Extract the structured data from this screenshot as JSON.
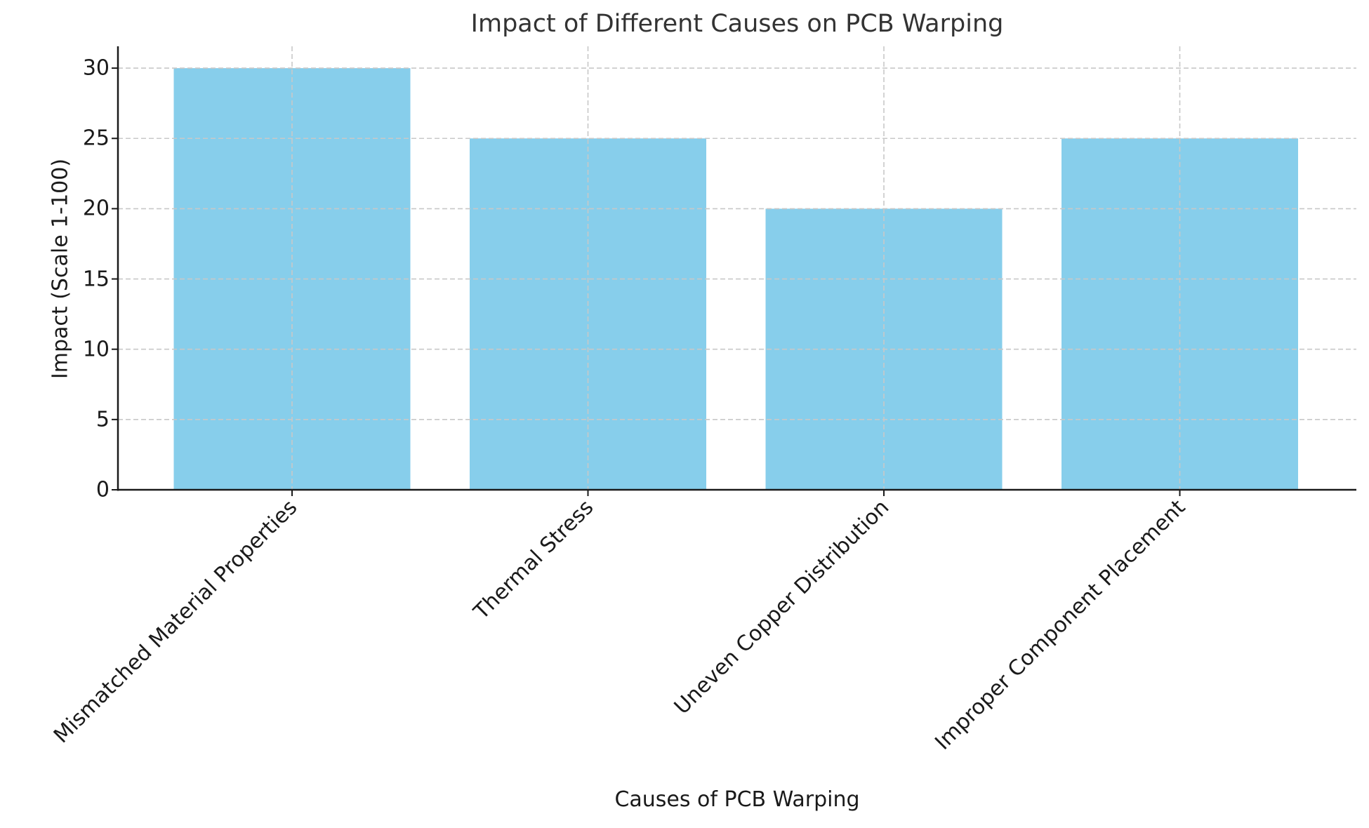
{
  "chart_data": {
    "type": "bar",
    "title": "Impact of Different Causes on PCB Warping",
    "xlabel": "Causes of PCB Warping",
    "ylabel": "Impact (Scale 1-100)",
    "categories": [
      "Mismatched Material Properties",
      "Thermal Stress",
      "Uneven Copper Distribution",
      "Improper Component Placement"
    ],
    "values": [
      30,
      25,
      20,
      25
    ],
    "ylim": [
      0,
      31.5
    ],
    "yticks": [
      0,
      5,
      10,
      15,
      20,
      25,
      30
    ],
    "ytick_labels": [
      "0",
      "5",
      "10",
      "15",
      "20",
      "25",
      "30"
    ],
    "grid": true,
    "grid_style": "dashed",
    "bar_color": "#87CEEB",
    "grid_color": "#c8c8c8",
    "axis_color": "#1a1a1a",
    "xtick_rotation": 45,
    "legend": null
  }
}
